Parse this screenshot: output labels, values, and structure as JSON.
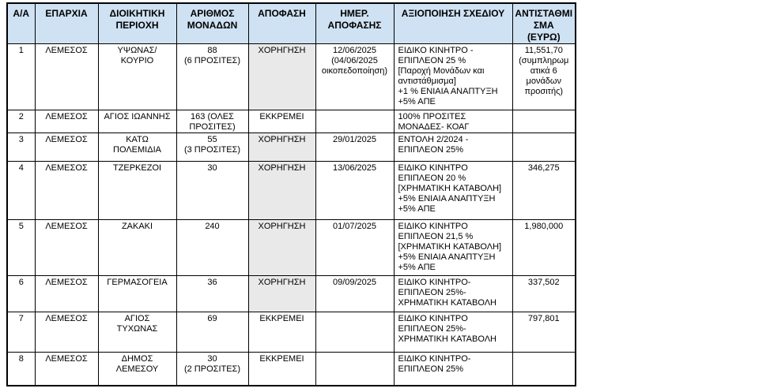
{
  "table": {
    "columns": [
      "Α/Α",
      "ΕΠΑΡΧΙΑ",
      "ΔΙΟΙΚΗΤΙΚΗ\nΠΕΡΙΟΧΗ",
      "ΑΡΙΘΜΟΣ\nΜΟΝΑΔΩΝ",
      "ΑΠΟΦΑΣΗ",
      "ΗΜΕΡ.\nΑΠΟΦΑΣΗΣ",
      "ΑΞΙΟΠΟΙΗΣΗ ΣΧΕΔΙΟΥ",
      "ΑΝΤΙΣΤΑΘΜΙΣΜΑ\n(ΕΥΡΩ)"
    ],
    "decision_states": {
      "granted": "ΧΟΡΗΓΗΣΗ",
      "pending": "ΕΚΚΡΕΜΕΙ"
    },
    "rows": [
      {
        "num": "1",
        "eparchia": "ΛΕΜΕΣΟΣ",
        "perioxi": "ΥΨΩΝΑΣ/\nΚΟΥΡΙΟ",
        "units": "88\n(6 ΠΡΟΣΙΤΕΣ)",
        "decision": "ΧΟΡΗΓΗΣΗ",
        "date": "12/06/2025\n(04/06/2025\nοικοπεδοποίηση)",
        "plan": "ΕΙΔΙΚΟ ΚΙΝΗΤΡΟ -\nΕΠΙΠΛΕΟΝ 25 %\n[Παροχή Μονάδων και\nαντιστάθμισμα]\n+1 % ΕΝΙΑΙΑ ΑΝΑΠΤΥΞΗ\n+5% ΑΠΕ",
        "comp": "11,551,70\n(συμπληρωμ\nατικά 6\nμονάδων\nπροσιτής)"
      },
      {
        "num": "2",
        "eparchia": "ΛΕΜΕΣΟΣ",
        "perioxi": "ΑΓΙΟΣ ΙΩΑΝΝΗΣ",
        "units": "163 (ΟΛΕΣ\nΠΡΟΣΙΤΕΣ)",
        "decision": "ΕΚΚΡΕΜΕΙ",
        "date": "",
        "plan": "100% ΠΡΟΣΙΤΕΣ\nΜΟΝΑΔΕΣ- ΚΟΑΓ",
        "comp": ""
      },
      {
        "num": "3",
        "eparchia": "ΛΕΜΕΣΟΣ",
        "perioxi": "ΚΑΤΩ\nΠΟΛΕΜΙΔΙΑ",
        "units": "55\n(3 ΠΡΟΣΙΤΕΣ)",
        "decision": "ΧΟΡΗΓΗΣΗ",
        "date": "29/01/2025",
        "plan": "ΕΝΤΟΛΗ 2/2024 -\nΕΠΙΠΛΕΟΝ 25%",
        "comp": ""
      },
      {
        "num": "4",
        "eparchia": "ΛΕΜΕΣΟΣ",
        "perioxi": "ΤΖΕΡΚΕΖΟΙ",
        "units": "30",
        "decision": "ΧΟΡΗΓΗΣΗ",
        "date": "13/06/2025",
        "plan": "ΕΙΔΙΚΟ ΚΙΝΗΤΡΟ\nΕΠΙΠΛΕΟΝ 20 %\n[ΧΡΗΜΑΤΙΚΗ ΚΑΤΑΒΟΛΗ]\n+5% ΕΝΙΑΙΑ ΑΝΑΠΤΥΞΗ\n+5% ΑΠΕ",
        "comp": "346,275"
      },
      {
        "num": "5",
        "eparchia": "ΛΕΜΕΣΟΣ",
        "perioxi": "ΖΑΚΑΚΙ",
        "units": "240",
        "decision": "ΧΟΡΗΓΗΣΗ",
        "date": "01/07/2025",
        "plan": "ΕΙΔΙΚΟ ΚΙΝΗΤΡΟ\nΕΠΙΠΛΕΟΝ 21,5 %\n[ΧΡΗΜΑΤΙΚΗ ΚΑΤΑΒΟΛΗ]\n+5% ΕΝΙΑΙΑ ΑΝΑΠΤΥΞΗ\n+5% ΑΠΕ",
        "comp": "1,980,000"
      },
      {
        "num": "6",
        "eparchia": "ΛΕΜΕΣΟΣ",
        "perioxi": "ΓΕΡΜΑΣΟΓΕΙΑ",
        "units": "36",
        "decision": "ΧΟΡΗΓΗΣΗ",
        "date": "09/09/2025",
        "plan": "ΕΙΔΙΚΟ ΚΙΝΗΤΡΟ-\nΕΠΙΠΛΕΟΝ 25%-\nΧΡΗΜΑΤΙΚΗ ΚΑΤΑΒΟΛΗ",
        "comp": "337,502"
      },
      {
        "num": "7",
        "eparchia": "ΛΕΜΕΣΟΣ",
        "perioxi": "ΑΓΙΟΣ\nΤΥΧΩΝΑΣ",
        "units": "69",
        "decision": "ΕΚΚΡΕΜΕΙ",
        "date": "",
        "plan": "ΕΙΔΙΚΟ ΚΙΝΗΤΡΟ\nΕΠΙΠΛΕΟΝ 25%-\nΧΡΗΜΑΤΙΚΗ ΚΑΤΑΒΟΛΗ",
        "comp": "797,801"
      },
      {
        "num": "8",
        "eparchia": "ΛΕΜΕΣΟΣ",
        "perioxi": "ΔΗΜΟΣ\nΛΕΜΕΣΟΥ",
        "units": "30\n(2 ΠΡΟΣΙΤΕΣ)",
        "decision": "ΕΚΚΡΕΜΕΙ",
        "date": "",
        "plan": "ΕΙΔΙΚΟ ΚΙΝΗΤΡΟ-\nΕΠΙΠΛΕΟΝ 25%",
        "comp": ""
      }
    ]
  },
  "colors": {
    "header_bg": "#cfe2f3",
    "granted_cell_bg": "#e9e9e9",
    "border": "#000000",
    "text": "#000000"
  }
}
